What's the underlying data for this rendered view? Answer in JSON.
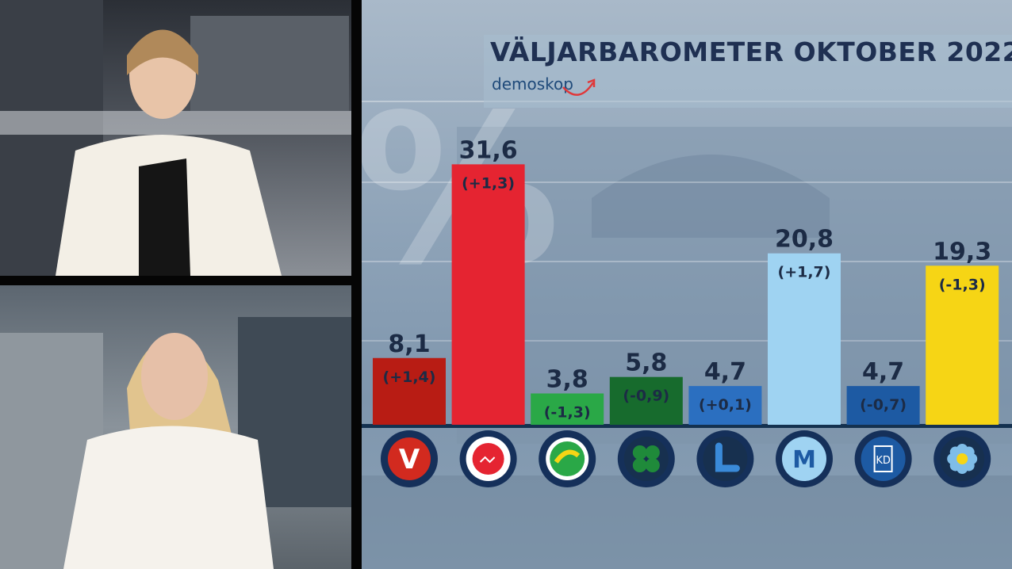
{
  "chart_data": {
    "type": "bar",
    "title": "VÄLJARBAROMETER OKTOBER 2022",
    "source": "demoskop",
    "categories": [
      "V",
      "S",
      "MP",
      "C",
      "L",
      "M",
      "KD",
      "SD"
    ],
    "values": [
      8.1,
      31.6,
      3.8,
      5.8,
      4.7,
      20.8,
      4.7,
      19.3
    ],
    "value_labels": [
      "8,1",
      "31,6",
      "3,8",
      "5,8",
      "4,7",
      "20,8",
      "4,7",
      "19,3"
    ],
    "changes": [
      "(+1,4)",
      "(+1,3)",
      "(-1,3)",
      "(-0,9)",
      "(+0,1)",
      "(+1,7)",
      "(-0,7)",
      "(-1,3)"
    ],
    "colors": [
      "#b81c14",
      "#e52431",
      "#2aa847",
      "#176b2d",
      "#2b6fc0",
      "#9fd3f2",
      "#1d5aa3",
      "#f6d515"
    ],
    "logos": [
      "V",
      "rose",
      "sunflower",
      "clover",
      "L",
      "M",
      "KD",
      "flower"
    ],
    "ylim": [
      0,
      35
    ]
  }
}
